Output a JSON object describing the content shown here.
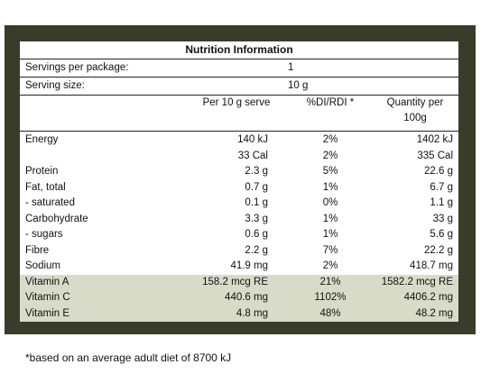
{
  "title": "Nutrition Information",
  "servings_per_package": {
    "label": "Servings per package:",
    "value": "1"
  },
  "serving_size": {
    "label": "Serving size:",
    "value": "10 g"
  },
  "headers": {
    "per_serve": "Per 10 g serve",
    "di": "%DI/RDI *",
    "qty_line1": "Quantity per",
    "qty_line2": "100g"
  },
  "rows": [
    {
      "name": "Energy",
      "serve": "140 kJ",
      "di": "2%",
      "qty": "1402 kJ",
      "shaded": false
    },
    {
      "name": "",
      "serve": "33 Cal",
      "di": "2%",
      "qty": "335 Cal",
      "shaded": false
    },
    {
      "name": "Protein",
      "serve": "2.3 g",
      "di": "5%",
      "qty": "22.6 g",
      "shaded": false
    },
    {
      "name": "Fat, total",
      "serve": "0.7 g",
      "di": "1%",
      "qty": "6.7 g",
      "shaded": false
    },
    {
      "name": "- saturated",
      "serve": "0.1 g",
      "di": "0%",
      "qty": "1.1 g",
      "shaded": false
    },
    {
      "name": "Carbohydrate",
      "serve": "3.3 g",
      "di": "1%",
      "qty": "33 g",
      "shaded": false
    },
    {
      "name": "- sugars",
      "serve": "0.6 g",
      "di": "1%",
      "qty": "5.6 g",
      "shaded": false
    },
    {
      "name": "Fibre",
      "serve": "2.2 g",
      "di": "7%",
      "qty": "22.2 g",
      "shaded": false
    },
    {
      "name": "Sodium",
      "serve": "41.9 mg",
      "di": "2%",
      "qty": "418.7 mg",
      "shaded": false
    },
    {
      "name": "Vitamin A",
      "serve": "158.2 mcg RE",
      "di": "21%",
      "qty": "1582.2 mcg RE",
      "shaded": true
    },
    {
      "name": "Vitamin C",
      "serve": "440.6 mg",
      "di": "1102%",
      "qty": "4406.2 mg",
      "shaded": true
    },
    {
      "name": "Vitamin E",
      "serve": "4.8 mg",
      "di": "48%",
      "qty": "48.2 mg",
      "shaded": true
    }
  ],
  "footnote": "*based on an average adult diet of 8700 kJ",
  "colors": {
    "frame": "#3a3c2a",
    "shade": "#d8dbc8"
  }
}
